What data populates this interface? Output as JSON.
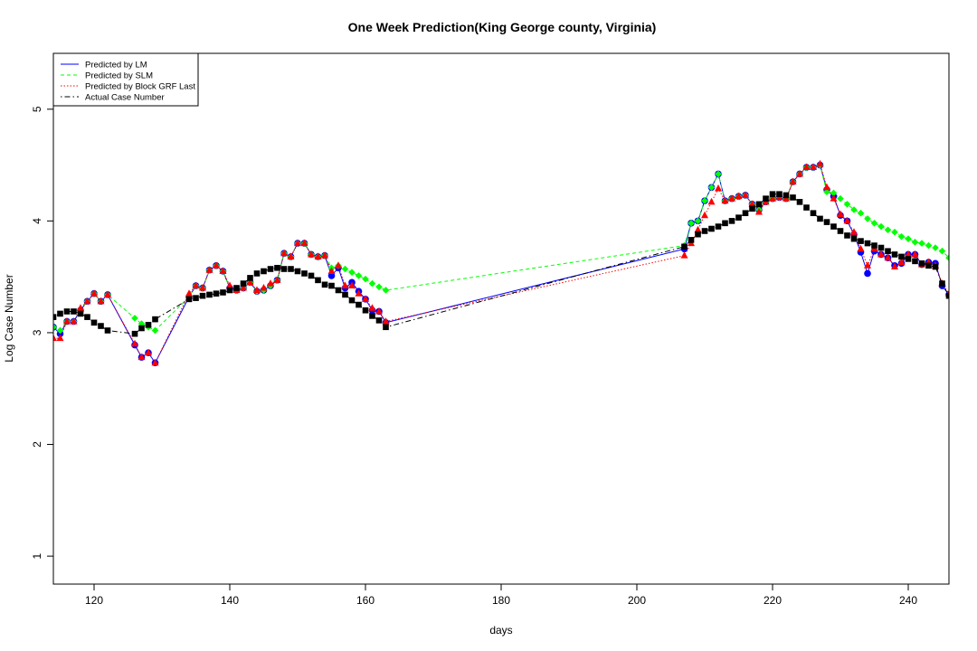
{
  "chart_data": {
    "type": "line",
    "title": "One Week Prediction(King George county, Virginia)",
    "xlabel": "days",
    "ylabel": "Log Case Number",
    "xlim": [
      114,
      246
    ],
    "ylim": [
      0.75,
      5.5
    ],
    "xticks": [
      120,
      140,
      160,
      180,
      200,
      220,
      240
    ],
    "yticks": [
      1,
      2,
      3,
      4,
      5
    ],
    "legend_position": "top-left",
    "grid": false,
    "series": [
      {
        "name": "Predicted by LM",
        "color": "#0000ff",
        "line_style": "solid",
        "marker": "circle",
        "x": [
          114,
          115,
          116,
          117,
          118,
          119,
          120,
          121,
          122,
          126,
          127,
          128,
          129,
          134,
          135,
          136,
          137,
          138,
          139,
          140,
          141,
          142,
          143,
          144,
          145,
          146,
          147,
          148,
          149,
          150,
          151,
          152,
          153,
          154,
          155,
          156,
          157,
          158,
          159,
          160,
          161,
          162,
          163,
          207,
          208,
          209,
          210,
          211,
          212,
          213,
          214,
          215,
          216,
          217,
          218,
          219,
          220,
          221,
          222,
          223,
          224,
          225,
          226,
          227,
          228,
          229,
          230,
          231,
          232,
          233,
          234,
          235,
          236,
          237,
          238,
          239,
          240,
          241,
          242,
          243,
          244,
          245,
          246
        ],
        "y": [
          3.05,
          2.99,
          3.1,
          3.1,
          3.2,
          3.28,
          3.35,
          3.28,
          3.34,
          2.89,
          2.78,
          2.82,
          2.73,
          3.32,
          3.42,
          3.4,
          3.56,
          3.6,
          3.55,
          3.4,
          3.38,
          3.4,
          3.45,
          3.37,
          3.38,
          3.42,
          3.47,
          3.71,
          3.68,
          3.8,
          3.8,
          3.7,
          3.68,
          3.69,
          3.51,
          3.58,
          3.4,
          3.45,
          3.37,
          3.3,
          3.2,
          3.19,
          3.09,
          3.75,
          3.98,
          4.0,
          4.18,
          4.3,
          4.42,
          4.18,
          4.2,
          4.22,
          4.23,
          4.15,
          4.1,
          4.17,
          4.2,
          4.21,
          4.2,
          4.35,
          4.42,
          4.48,
          4.48,
          4.5,
          4.28,
          4.22,
          4.05,
          4.0,
          3.88,
          3.72,
          3.53,
          3.73,
          3.7,
          3.67,
          3.6,
          3.62,
          3.7,
          3.7,
          3.61,
          3.63,
          3.62,
          3.42,
          3.34
        ]
      },
      {
        "name": "Predicted by SLM",
        "color": "#00ff00",
        "line_style": "dashed",
        "marker": "diamond",
        "x": [
          114,
          115,
          116,
          117,
          118,
          119,
          120,
          121,
          122,
          126,
          127,
          128,
          129,
          134,
          135,
          136,
          137,
          138,
          139,
          140,
          141,
          142,
          143,
          144,
          145,
          146,
          147,
          148,
          149,
          150,
          151,
          152,
          153,
          154,
          155,
          156,
          157,
          158,
          159,
          160,
          161,
          162,
          163,
          207,
          208,
          209,
          210,
          211,
          212,
          213,
          214,
          215,
          216,
          217,
          218,
          219,
          220,
          221,
          222,
          223,
          224,
          225,
          226,
          227,
          228,
          229,
          230,
          231,
          232,
          233,
          234,
          235,
          236,
          237,
          238,
          239,
          240,
          241,
          242,
          243,
          244,
          245,
          246
        ],
        "y": [
          3.05,
          3.02,
          3.1,
          3.1,
          3.2,
          3.28,
          3.35,
          3.28,
          3.34,
          3.13,
          3.08,
          3.05,
          3.02,
          3.32,
          3.42,
          3.4,
          3.56,
          3.6,
          3.55,
          3.4,
          3.38,
          3.4,
          3.45,
          3.37,
          3.38,
          3.42,
          3.47,
          3.71,
          3.68,
          3.8,
          3.8,
          3.7,
          3.68,
          3.69,
          3.58,
          3.6,
          3.57,
          3.54,
          3.51,
          3.48,
          3.44,
          3.41,
          3.38,
          3.78,
          3.98,
          4.0,
          4.18,
          4.3,
          4.42,
          4.18,
          4.2,
          4.22,
          4.23,
          4.15,
          4.1,
          4.17,
          4.2,
          4.21,
          4.2,
          4.35,
          4.42,
          4.48,
          4.48,
          4.5,
          4.26,
          4.25,
          4.2,
          4.15,
          4.1,
          4.07,
          4.02,
          3.98,
          3.95,
          3.92,
          3.9,
          3.86,
          3.84,
          3.81,
          3.8,
          3.78,
          3.76,
          3.73,
          3.67
        ]
      },
      {
        "name": "Predicted by Block GRF Last",
        "color": "#ff0000",
        "line_style": "dotted",
        "marker": "triangle",
        "x": [
          114,
          115,
          116,
          117,
          118,
          119,
          120,
          121,
          122,
          126,
          127,
          128,
          129,
          134,
          135,
          136,
          137,
          138,
          139,
          140,
          141,
          142,
          143,
          144,
          145,
          146,
          147,
          148,
          149,
          150,
          151,
          152,
          153,
          154,
          155,
          156,
          157,
          158,
          159,
          160,
          161,
          162,
          163,
          207,
          208,
          209,
          210,
          211,
          212,
          213,
          214,
          215,
          216,
          217,
          218,
          219,
          220,
          221,
          222,
          223,
          224,
          225,
          226,
          227,
          228,
          229,
          230,
          231,
          232,
          233,
          234,
          235,
          236,
          237,
          238,
          239,
          240,
          241,
          242,
          243,
          244,
          245,
          246
        ],
        "y": [
          2.95,
          2.95,
          3.1,
          3.1,
          3.22,
          3.28,
          3.35,
          3.28,
          3.34,
          2.9,
          2.78,
          2.82,
          2.73,
          3.35,
          3.42,
          3.4,
          3.56,
          3.6,
          3.55,
          3.42,
          3.38,
          3.4,
          3.45,
          3.38,
          3.4,
          3.44,
          3.47,
          3.71,
          3.68,
          3.8,
          3.8,
          3.7,
          3.68,
          3.69,
          3.55,
          3.6,
          3.42,
          3.42,
          3.35,
          3.3,
          3.22,
          3.19,
          3.1,
          3.69,
          3.8,
          3.92,
          4.05,
          4.17,
          4.29,
          4.18,
          4.2,
          4.22,
          4.23,
          4.15,
          4.08,
          4.17,
          4.2,
          4.21,
          4.2,
          4.35,
          4.42,
          4.48,
          4.48,
          4.51,
          4.3,
          4.2,
          4.06,
          4.0,
          3.9,
          3.75,
          3.6,
          3.75,
          3.7,
          3.67,
          3.59,
          3.63,
          3.7,
          3.7,
          3.61,
          3.63,
          3.6,
          3.44,
          3.35
        ]
      },
      {
        "name": "Actual Case Number",
        "color": "#000000",
        "line_style": "dotdash",
        "marker": "square",
        "x": [
          114,
          115,
          116,
          117,
          118,
          119,
          120,
          121,
          122,
          126,
          127,
          128,
          129,
          134,
          135,
          136,
          137,
          138,
          139,
          140,
          141,
          142,
          143,
          144,
          145,
          146,
          147,
          148,
          149,
          150,
          151,
          152,
          153,
          154,
          155,
          156,
          157,
          158,
          159,
          160,
          161,
          162,
          163,
          207,
          208,
          209,
          210,
          211,
          212,
          213,
          214,
          215,
          216,
          217,
          218,
          219,
          220,
          221,
          222,
          223,
          224,
          225,
          226,
          227,
          228,
          229,
          230,
          231,
          232,
          233,
          234,
          235,
          236,
          237,
          238,
          239,
          240,
          241,
          242,
          243,
          244,
          245,
          246
        ],
        "y": [
          3.14,
          3.17,
          3.19,
          3.19,
          3.17,
          3.14,
          3.09,
          3.06,
          3.02,
          2.99,
          3.04,
          3.07,
          3.12,
          3.3,
          3.31,
          3.33,
          3.34,
          3.35,
          3.36,
          3.38,
          3.4,
          3.44,
          3.49,
          3.53,
          3.55,
          3.57,
          3.58,
          3.57,
          3.57,
          3.55,
          3.53,
          3.51,
          3.47,
          3.43,
          3.42,
          3.38,
          3.34,
          3.29,
          3.25,
          3.2,
          3.15,
          3.11,
          3.05,
          3.77,
          3.83,
          3.88,
          3.91,
          3.93,
          3.95,
          3.98,
          4.0,
          4.03,
          4.07,
          4.11,
          4.15,
          4.2,
          4.24,
          4.24,
          4.23,
          4.21,
          4.17,
          4.12,
          4.07,
          4.02,
          3.99,
          3.95,
          3.91,
          3.87,
          3.84,
          3.82,
          3.8,
          3.78,
          3.76,
          3.73,
          3.7,
          3.68,
          3.66,
          3.64,
          3.62,
          3.6,
          3.59,
          3.44,
          3.33
        ]
      }
    ]
  }
}
